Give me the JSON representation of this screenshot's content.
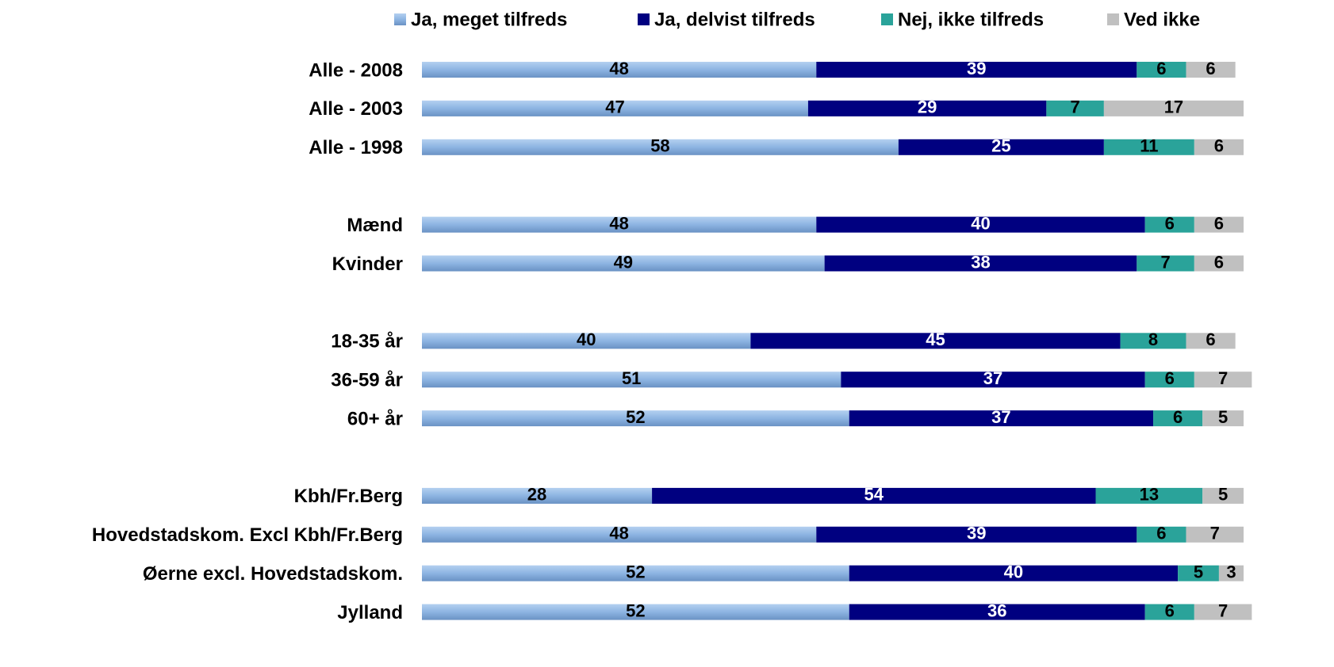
{
  "chart_data": {
    "type": "stacked-bar-horizontal",
    "categories": [
      "Alle - 2008",
      "Alle - 2003",
      "Alle - 1998",
      null,
      "Mænd",
      "Kvinder",
      null,
      "18-35 år",
      "36-59 år",
      "60+ år",
      null,
      "Kbh/Fr.Berg",
      "Hovedstadskom. Excl Kbh/Fr.Berg",
      "Øerne excl. Hovedstadskom.",
      "Jylland"
    ],
    "series": [
      {
        "name": "Ja, meget tilfreds",
        "color": "#8db4e2",
        "values": [
          48,
          47,
          58,
          null,
          48,
          49,
          null,
          40,
          51,
          52,
          null,
          28,
          48,
          52,
          52
        ]
      },
      {
        "name": "Ja, delvist tilfreds",
        "color": "#000080",
        "values": [
          39,
          29,
          25,
          null,
          40,
          38,
          null,
          45,
          37,
          37,
          null,
          54,
          39,
          40,
          36
        ]
      },
      {
        "name": "Nej, ikke tilfreds",
        "color": "#2aa39a",
        "values": [
          6,
          7,
          11,
          null,
          6,
          7,
          null,
          8,
          6,
          6,
          null,
          13,
          6,
          5,
          6
        ]
      },
      {
        "name": "Ved ikke",
        "color": "#c0c0c0",
        "values": [
          6,
          17,
          6,
          null,
          6,
          6,
          null,
          6,
          7,
          5,
          null,
          5,
          7,
          3,
          7
        ]
      }
    ],
    "xlim": [
      0,
      100
    ],
    "legend": "top"
  }
}
